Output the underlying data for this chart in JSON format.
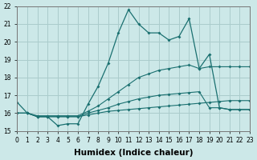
{
  "background_color": "#cce8e8",
  "grid_color": "#aacccc",
  "line_color": "#1a7070",
  "x_min": 0,
  "x_max": 23,
  "y_min": 15,
  "y_max": 22,
  "xlabel": "Humidex (Indice chaleur)",
  "xlabel_fontsize": 7.5,
  "tick_fontsize": 5.5,
  "yticks": [
    15,
    16,
    17,
    18,
    19,
    20,
    21,
    22
  ],
  "xticks": [
    0,
    1,
    2,
    3,
    4,
    5,
    6,
    7,
    8,
    9,
    10,
    11,
    12,
    13,
    14,
    15,
    16,
    17,
    18,
    19,
    20,
    21,
    22,
    23
  ],
  "line1_x": [
    0,
    1,
    2,
    3,
    4,
    5,
    6,
    7,
    8,
    9,
    10,
    11,
    12,
    13,
    14,
    15,
    16,
    17,
    18,
    19,
    20,
    21,
    22,
    23
  ],
  "line1_y": [
    16.6,
    16.0,
    15.8,
    15.8,
    15.3,
    15.4,
    15.4,
    16.5,
    17.5,
    18.8,
    20.5,
    21.8,
    21.0,
    20.5,
    20.5,
    20.1,
    20.3,
    21.3,
    18.5,
    19.3,
    16.3,
    16.2,
    16.2,
    16.2
  ],
  "line2_x": [
    0,
    1,
    2,
    3,
    4,
    5,
    6,
    7,
    8,
    9,
    10,
    11,
    12,
    13,
    14,
    15,
    16,
    17,
    18,
    19,
    20,
    21,
    22,
    23
  ],
  "line2_y": [
    16.0,
    16.0,
    15.85,
    15.85,
    15.85,
    15.85,
    15.85,
    16.1,
    16.4,
    16.8,
    17.2,
    17.6,
    18.0,
    18.2,
    18.4,
    18.5,
    18.6,
    18.7,
    18.5,
    18.6,
    18.6,
    18.6,
    18.6,
    18.6
  ],
  "line3_x": [
    0,
    1,
    2,
    3,
    4,
    5,
    6,
    7,
    8,
    9,
    10,
    11,
    12,
    13,
    14,
    15,
    16,
    17,
    18,
    19,
    20,
    21,
    22,
    23
  ],
  "line3_y": [
    16.0,
    16.0,
    15.8,
    15.8,
    15.8,
    15.8,
    15.8,
    16.0,
    16.15,
    16.3,
    16.5,
    16.65,
    16.8,
    16.9,
    17.0,
    17.05,
    17.1,
    17.15,
    17.2,
    16.3,
    16.3,
    16.2,
    16.2,
    16.2
  ],
  "line4_x": [
    0,
    1,
    2,
    3,
    4,
    5,
    6,
    7,
    8,
    9,
    10,
    11,
    12,
    13,
    14,
    15,
    16,
    17,
    18,
    19,
    20,
    21,
    22,
    23
  ],
  "line4_y": [
    16.0,
    16.0,
    15.8,
    15.8,
    15.8,
    15.8,
    15.8,
    15.9,
    16.0,
    16.1,
    16.15,
    16.2,
    16.25,
    16.3,
    16.35,
    16.4,
    16.45,
    16.5,
    16.55,
    16.6,
    16.65,
    16.7,
    16.7,
    16.7
  ]
}
